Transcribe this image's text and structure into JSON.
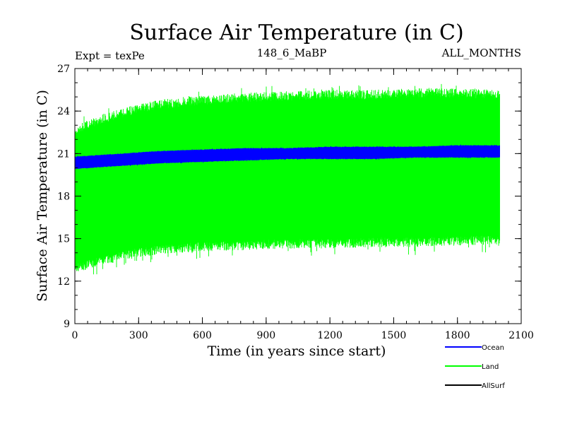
{
  "chart_data": {
    "type": "line",
    "title": "Surface Air Temperature (in C)",
    "subtitle_left": "Expt = texPe",
    "subtitle_center": "148_6_MaBP",
    "subtitle_right": "ALL_MONTHS",
    "xlabel": "Time (in years since start)",
    "ylabel": "Surface Air Temperature (in C)",
    "xlim": [
      0,
      2100
    ],
    "ylim": [
      9,
      27
    ],
    "xticks": [
      0,
      300,
      600,
      900,
      1200,
      1500,
      1800,
      2100
    ],
    "yticks": [
      9,
      12,
      15,
      18,
      21,
      24,
      27
    ],
    "x_end": 2000,
    "series": [
      {
        "name": "Land",
        "color": "#00ff00",
        "envelope": {
          "x": [
            0,
            100,
            200,
            300,
            400,
            600,
            800,
            1000,
            1200,
            1400,
            1600,
            1800,
            2000
          ],
          "upper": [
            23.0,
            23.6,
            24.1,
            24.5,
            24.8,
            25.1,
            25.3,
            25.4,
            25.5,
            25.5,
            25.6,
            25.6,
            25.5
          ],
          "lower": [
            12.6,
            13.0,
            13.4,
            13.7,
            13.9,
            14.1,
            14.2,
            14.3,
            14.3,
            14.4,
            14.4,
            14.5,
            14.6
          ]
        }
      },
      {
        "name": "Ocean",
        "color": "#0000ff",
        "envelope": {
          "x": [
            0,
            100,
            200,
            300,
            400,
            600,
            800,
            1000,
            1200,
            1400,
            1600,
            1800,
            2000
          ],
          "upper": [
            20.8,
            20.9,
            21.0,
            21.1,
            21.2,
            21.3,
            21.4,
            21.4,
            21.5,
            21.5,
            21.5,
            21.6,
            21.6
          ],
          "lower": [
            19.9,
            20.0,
            20.1,
            20.2,
            20.3,
            20.4,
            20.5,
            20.6,
            20.6,
            20.6,
            20.7,
            20.7,
            20.7
          ]
        }
      },
      {
        "name": "AllSurf",
        "color": "#000000",
        "envelope": null
      }
    ],
    "legend": [
      {
        "label": "Ocean",
        "color": "#0000ff"
      },
      {
        "label": "Land",
        "color": "#00ff00"
      },
      {
        "label": "AllSurf",
        "color": "#000000"
      }
    ]
  }
}
